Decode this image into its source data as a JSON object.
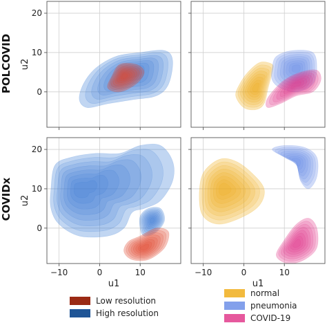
{
  "colors": {
    "low_resolution": "#9b2a14",
    "high_resolution": "#1f5596",
    "normal": "#f0ae1c",
    "pneumonia": "#6d8fe8",
    "covid19": "#e23b8c",
    "density_red": "#e0462e",
    "density_blue": "#3f7fd6"
  },
  "chart_data": [
    {
      "type": "density",
      "row_label": "POLCOVID",
      "xlabel": "",
      "ylabel": "u2",
      "xlim": [
        -13,
        20
      ],
      "ylim": [
        -9,
        23
      ],
      "xticks": [
        -10,
        0,
        10
      ],
      "yticks": [
        0,
        10,
        20
      ],
      "show_xtick_labels": false,
      "show_ytick_labels": true,
      "grid": true,
      "series": [
        {
          "name": "High resolution",
          "color_key": "density_blue",
          "center": [
            8,
            5
          ],
          "polygon": [
            [
              -3,
              -4
            ],
            [
              2,
              -3
            ],
            [
              8,
              -2
            ],
            [
              14,
              -1
            ],
            [
              17,
              2
            ],
            [
              18,
              8
            ],
            [
              16,
              10.5
            ],
            [
              10,
              10
            ],
            [
              4,
              9
            ],
            [
              -1,
              6
            ],
            [
              -4,
              2
            ],
            [
              -5,
              -2
            ]
          ]
        },
        {
          "name": "Low resolution",
          "color_key": "density_red",
          "center": [
            6,
            4
          ],
          "polygon": [
            [
              2,
              1
            ],
            [
              5,
              0
            ],
            [
              9,
              2
            ],
            [
              11,
              5
            ],
            [
              9,
              7
            ],
            [
              5,
              7
            ],
            [
              3,
              4
            ]
          ]
        }
      ]
    },
    {
      "type": "density",
      "xlabel": "",
      "ylabel": "",
      "xlim": [
        -13,
        20
      ],
      "ylim": [
        -9,
        23
      ],
      "xticks": [
        -10,
        0,
        10
      ],
      "yticks": [
        0,
        10,
        20
      ],
      "show_xtick_labels": false,
      "show_ytick_labels": false,
      "grid": true,
      "series": [
        {
          "name": "normal",
          "color_key": "normal",
          "center": [
            3,
            1
          ],
          "polygon": [
            [
              -2,
              -1
            ],
            [
              0,
              -4
            ],
            [
              3,
              -4.5
            ],
            [
              5,
              -3
            ],
            [
              6,
              1
            ],
            [
              7,
              5
            ],
            [
              7,
              7
            ],
            [
              4,
              7.5
            ],
            [
              1,
              5
            ],
            [
              -1,
              2
            ]
          ]
        },
        {
          "name": "pneumonia",
          "color_key": "pneumonia",
          "center": [
            13,
            6
          ],
          "polygon": [
            [
              7,
              3
            ],
            [
              9,
              1
            ],
            [
              13,
              0
            ],
            [
              17,
              2
            ],
            [
              18,
              6
            ],
            [
              17,
              10
            ],
            [
              12,
              10.5
            ],
            [
              8,
              9
            ],
            [
              7,
              6
            ]
          ]
        },
        {
          "name": "COVID-19",
          "color_key": "covid19",
          "center": [
            13,
            2
          ],
          "polygon": [
            [
              6,
              -4
            ],
            [
              9,
              -3
            ],
            [
              13,
              -1
            ],
            [
              17,
              0
            ],
            [
              19,
              3
            ],
            [
              18,
              5.5
            ],
            [
              14,
              5
            ],
            [
              10,
              3
            ],
            [
              7,
              0
            ],
            [
              5.5,
              -2.5
            ]
          ]
        }
      ]
    },
    {
      "type": "density",
      "row_label": "COVIDx",
      "xlabel": "u1",
      "ylabel": "u2",
      "xlim": [
        -13,
        20
      ],
      "ylim": [
        -9,
        23
      ],
      "xticks": [
        -10,
        0,
        10
      ],
      "yticks": [
        0,
        10,
        20
      ],
      "show_xtick_labels": true,
      "show_ytick_labels": true,
      "grid": true,
      "series": [
        {
          "name": "High resolution",
          "color_key": "density_blue",
          "center": [
            -5,
            10
          ],
          "polygon": [
            [
              -12,
              10
            ],
            [
              -11,
              16
            ],
            [
              -7,
              18
            ],
            [
              -1,
              19
            ],
            [
              5,
              19
            ],
            [
              10,
              21
            ],
            [
              15,
              21
            ],
            [
              18,
              17
            ],
            [
              18,
              12
            ],
            [
              15,
              7
            ],
            [
              11,
              5
            ],
            [
              8,
              4
            ],
            [
              6,
              0
            ],
            [
              2,
              -2
            ],
            [
              -5,
              -2
            ],
            [
              -10,
              1
            ],
            [
              -12,
              5
            ]
          ]
        },
        {
          "name": "High resolution",
          "color_key": "density_blue",
          "center": [
            13,
            2
          ],
          "polygon": [
            [
              10,
              0
            ],
            [
              11,
              -2
            ],
            [
              14,
              -1
            ],
            [
              16,
              2
            ],
            [
              15,
              5
            ],
            [
              12,
              5
            ],
            [
              10,
              3
            ]
          ]
        },
        {
          "name": "Low resolution",
          "color_key": "density_red",
          "center": [
            11,
            -5
          ],
          "polygon": [
            [
              6,
              -6
            ],
            [
              8,
              -8
            ],
            [
              12,
              -8
            ],
            [
              16,
              -5
            ],
            [
              17,
              -1
            ],
            [
              14,
              0
            ],
            [
              10,
              -2
            ],
            [
              7,
              -3.5
            ]
          ]
        }
      ]
    },
    {
      "type": "density",
      "xlabel": "u1",
      "ylabel": "",
      "xlim": [
        -13,
        20
      ],
      "ylim": [
        -9,
        23
      ],
      "xticks": [
        -10,
        0,
        10
      ],
      "yticks": [
        0,
        10,
        20
      ],
      "show_xtick_labels": true,
      "show_ytick_labels": false,
      "grid": true,
      "series": [
        {
          "name": "normal",
          "color_key": "normal",
          "center": [
            -5,
            10
          ],
          "polygon": [
            [
              -11,
              8
            ],
            [
              -10,
              14
            ],
            [
              -6,
              17.5
            ],
            [
              -2,
              17
            ],
            [
              2,
              14
            ],
            [
              5,
              10
            ],
            [
              4,
              6
            ],
            [
              0,
              3
            ],
            [
              -6,
              1
            ],
            [
              -10,
              3
            ]
          ]
        },
        {
          "name": "pneumonia",
          "color_key": "pneumonia",
          "center": [
            13,
            17
          ],
          "polygon": [
            [
              7,
              20
            ],
            [
              10,
              21
            ],
            [
              15,
              20.5
            ],
            [
              18,
              18
            ],
            [
              18,
              13
            ],
            [
              16,
              10
            ],
            [
              14,
              12
            ],
            [
              13,
              16
            ],
            [
              10,
              18
            ]
          ]
        },
        {
          "name": "COVID-19",
          "color_key": "covid19",
          "center": [
            13,
            -4
          ],
          "polygon": [
            [
              8,
              -7
            ],
            [
              11,
              -9
            ],
            [
              15,
              -8
            ],
            [
              18,
              -5
            ],
            [
              18,
              0
            ],
            [
              16,
              2.5
            ],
            [
              13,
              1
            ],
            [
              10,
              -3
            ]
          ]
        }
      ]
    }
  ],
  "legend_left": [
    {
      "label": "Low resolution",
      "color_key": "low_resolution"
    },
    {
      "label": "High resolution",
      "color_key": "high_resolution"
    }
  ],
  "legend_right": [
    {
      "label": "normal",
      "color_key": "normal"
    },
    {
      "label": "pneumonia",
      "color_key": "pneumonia"
    },
    {
      "label": "COVID-19",
      "color_key": "covid19"
    }
  ]
}
